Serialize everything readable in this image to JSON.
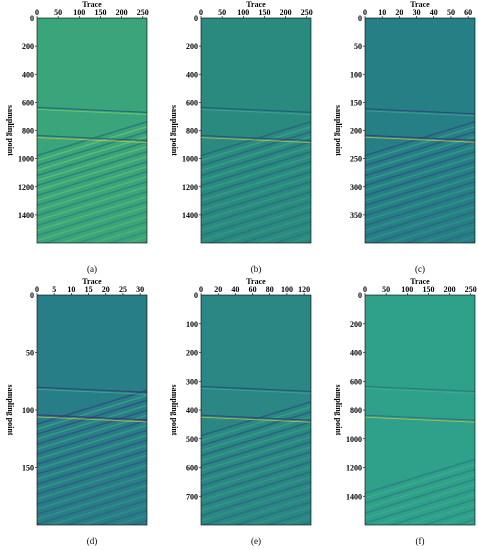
{
  "figure": {
    "x_label": "Trace",
    "y_label": "sampling point",
    "panels": [
      {
        "id": "a",
        "caption": "(a)",
        "x_ticks": [
          "0",
          "50",
          "100",
          "150",
          "200",
          "250"
        ],
        "y_ticks": [
          "200",
          "400",
          "600",
          "800",
          "1000",
          "1200",
          "1400"
        ],
        "x_range": [
          0,
          260
        ],
        "y_range": [
          0,
          1600
        ],
        "colors": {
          "bg": "#3aa57a",
          "light": "#7ccf6a",
          "dark": "#1d5f7a"
        },
        "event_rows": [
          650,
          850
        ],
        "noise_rows": [
          1000,
          1600
        ]
      },
      {
        "id": "b",
        "caption": "(b)",
        "x_ticks": [
          "0",
          "50",
          "100",
          "150",
          "200",
          "250"
        ],
        "y_ticks": [
          "200",
          "400",
          "600",
          "800",
          "1000",
          "1200",
          "1400"
        ],
        "x_range": [
          0,
          260
        ],
        "y_range": [
          0,
          1600
        ],
        "colors": {
          "bg": "#2a8a80",
          "light": "#3fb08a",
          "dark": "#24507a"
        },
        "event_rows": [
          650,
          850
        ],
        "noise_rows": [
          1000,
          1600
        ]
      },
      {
        "id": "c",
        "caption": "(c)",
        "x_ticks": [
          "0",
          "10",
          "20",
          "30",
          "40",
          "50",
          "60"
        ],
        "y_ticks": [
          "50",
          "100",
          "150",
          "200",
          "250",
          "300",
          "350"
        ],
        "x_range": [
          0,
          64
        ],
        "y_range": [
          0,
          400
        ],
        "colors": {
          "bg": "#277f86",
          "light": "#3fae88",
          "dark": "#2c3f7d"
        },
        "event_rows": [
          165,
          212
        ],
        "noise_rows": [
          250,
          400
        ]
      },
      {
        "id": "d",
        "caption": "(d)",
        "x_ticks": [
          "0",
          "5",
          "10",
          "15",
          "20",
          "25",
          "30"
        ],
        "y_ticks": [
          "50",
          "100",
          "150"
        ],
        "x_range": [
          0,
          32
        ],
        "y_range": [
          0,
          200
        ],
        "colors": {
          "bg": "#287e87",
          "light": "#46b585",
          "dark": "#33357a"
        },
        "event_rows": [
          82,
          106
        ],
        "noise_rows": [
          115,
          200
        ]
      },
      {
        "id": "e",
        "caption": "(e)",
        "x_ticks": [
          "0",
          "20",
          "40",
          "60",
          "80",
          "100",
          "120"
        ],
        "y_ticks": [
          "100",
          "200",
          "300",
          "400",
          "500",
          "600",
          "700"
        ],
        "x_range": [
          0,
          128
        ],
        "y_range": [
          0,
          800
        ],
        "colors": {
          "bg": "#2a8783",
          "light": "#3fad88",
          "dark": "#26467a"
        },
        "event_rows": [
          325,
          425
        ],
        "noise_rows": [
          500,
          800
        ]
      },
      {
        "id": "f",
        "caption": "(f)",
        "x_ticks": [
          "0",
          "50",
          "100",
          "150",
          "200",
          "250"
        ],
        "y_ticks": [
          "200",
          "400",
          "600",
          "800",
          "1000",
          "1200",
          "1400"
        ],
        "x_range": [
          0,
          260
        ],
        "y_range": [
          0,
          1600
        ],
        "colors": {
          "bg": "#2fa08a",
          "light": "#3fb48c",
          "dark": "#2b6e80"
        },
        "event_rows": [
          650,
          850
        ],
        "noise_rows": [
          1400,
          1600
        ]
      }
    ]
  }
}
